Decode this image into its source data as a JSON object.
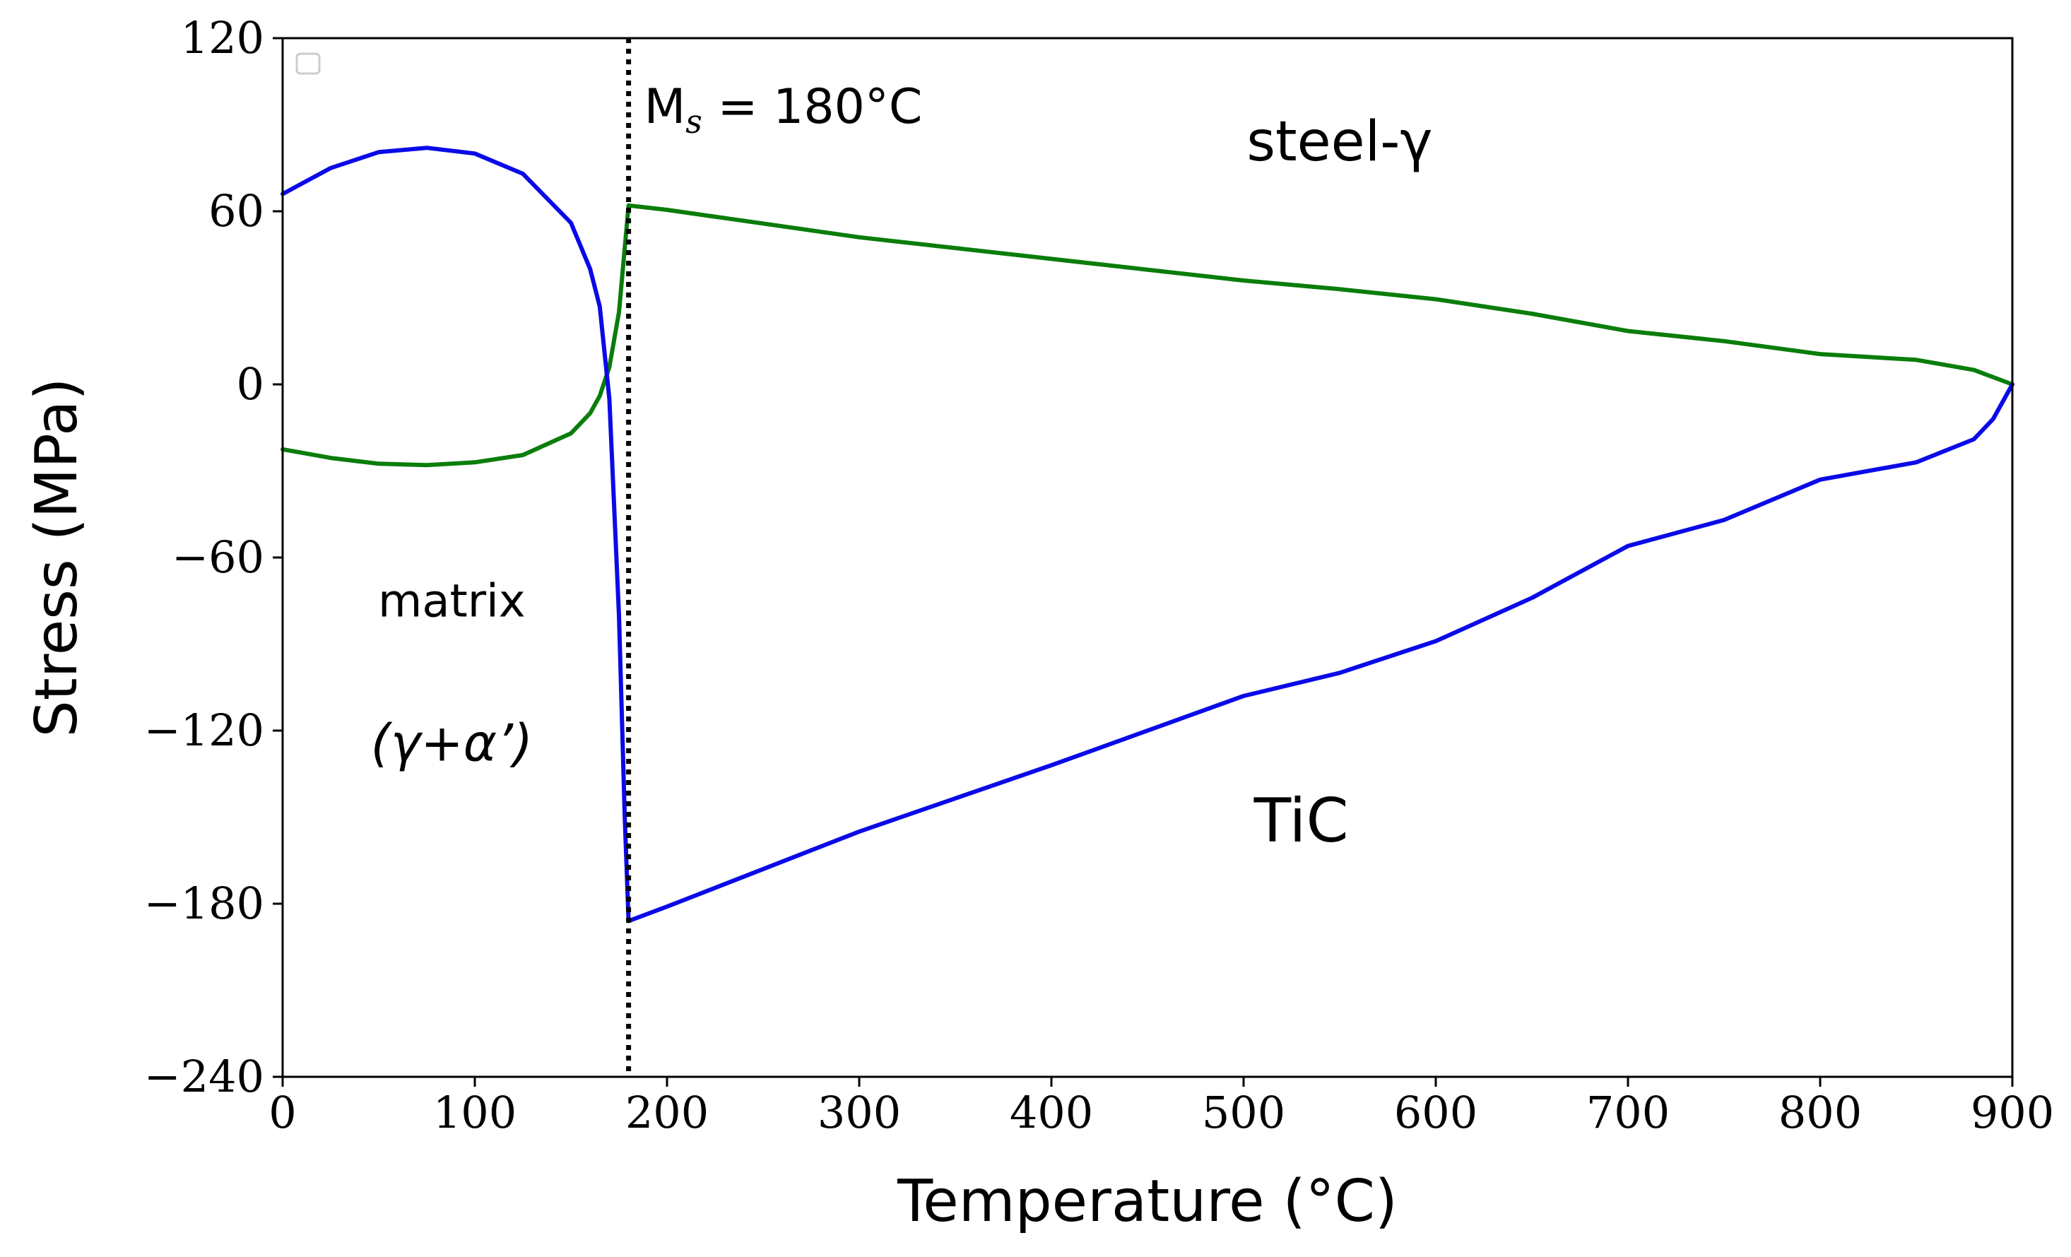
{
  "chart_data": {
    "type": "line",
    "title": "",
    "xlabel": "Temperature (°C)",
    "ylabel": "Stress (MPa)",
    "xlim": [
      0,
      900
    ],
    "ylim": [
      -240,
      120
    ],
    "xticks": [
      0,
      100,
      200,
      300,
      400,
      500,
      600,
      700,
      800,
      900
    ],
    "yticks": [
      -240,
      -180,
      -120,
      -60,
      0,
      60,
      120
    ],
    "xtick_labels": [
      "0",
      "100",
      "200",
      "300",
      "400",
      "500",
      "600",
      "700",
      "800",
      "900"
    ],
    "ytick_labels": [
      "−240",
      "−180",
      "−120",
      "−60",
      "0",
      "60",
      "120"
    ],
    "grid": false,
    "legend": "top-left (empty)",
    "series": [
      {
        "name": "steel-γ",
        "color": "#0a7d0a",
        "x": [
          0,
          25,
          50,
          75,
          100,
          125,
          150,
          160,
          165,
          170,
          175,
          180,
          200,
          300,
          400,
          500,
          550,
          600,
          650,
          700,
          750,
          800,
          850,
          880,
          900
        ],
        "y": [
          -22.5,
          -25.5,
          -27.5,
          -28,
          -27,
          -24.5,
          -17,
          -10,
          -4,
          6,
          25,
          62,
          60.5,
          51,
          43.5,
          36,
          33,
          29.5,
          24.5,
          18.5,
          15,
          10.5,
          8.5,
          5,
          0
        ]
      },
      {
        "name": "TiC",
        "color": "#0a0ae8",
        "x": [
          0,
          25,
          50,
          75,
          100,
          125,
          150,
          160,
          165,
          170,
          175,
          178,
          180,
          200,
          300,
          400,
          500,
          550,
          600,
          650,
          700,
          750,
          800,
          850,
          880,
          890,
          900
        ],
        "y": [
          66,
          75,
          80.5,
          82,
          80,
          73,
          56,
          40,
          27,
          -5,
          -80,
          -150,
          -186,
          -181,
          -155,
          -132,
          -108,
          -100,
          -89,
          -74,
          -56,
          -47,
          -33,
          -27,
          -19,
          -12,
          0
        ]
      }
    ],
    "annotations": [
      {
        "text": "matrix",
        "x": 88,
        "y": -75
      },
      {
        "text": "(γ+α’)",
        "x": 88,
        "y": -125
      },
      {
        "text": "steel-γ",
        "x": 550,
        "y": 83
      },
      {
        "text": "TiC",
        "x": 530,
        "y": -153
      }
    ],
    "vline": {
      "x": 180,
      "label_main": "M",
      "label_sub": "s",
      "label_rest": " = 180°C",
      "label_y": 96
    }
  }
}
